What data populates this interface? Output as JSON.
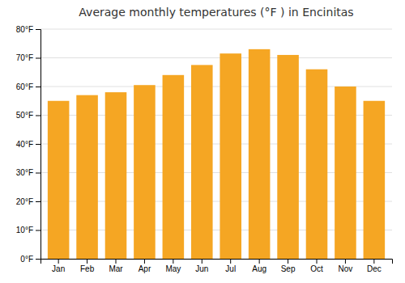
{
  "chart_data": {
    "type": "bar",
    "title": "Average monthly temperatures (°F ) in Encinitas",
    "categories": [
      "Jan",
      "Feb",
      "Mar",
      "Apr",
      "May",
      "Jun",
      "Jul",
      "Aug",
      "Sep",
      "Oct",
      "Nov",
      "Dec"
    ],
    "values": [
      55,
      57,
      58,
      60.5,
      64,
      67.5,
      71.5,
      73,
      71,
      66,
      60,
      55
    ],
    "color": "#F5A623",
    "ylim": [
      0,
      80
    ],
    "yticks": [
      {
        "value": 0,
        "label": "0°F"
      },
      {
        "value": 10,
        "label": "10°F"
      },
      {
        "value": 20,
        "label": "20°F"
      },
      {
        "value": 30,
        "label": "30°F"
      },
      {
        "value": 40,
        "label": "40°F"
      },
      {
        "value": 50,
        "label": "50°F"
      },
      {
        "value": 60,
        "label": "60°F"
      },
      {
        "value": 70,
        "label": "70°F"
      },
      {
        "value": 80,
        "label": "80°F"
      }
    ],
    "grid": true
  }
}
